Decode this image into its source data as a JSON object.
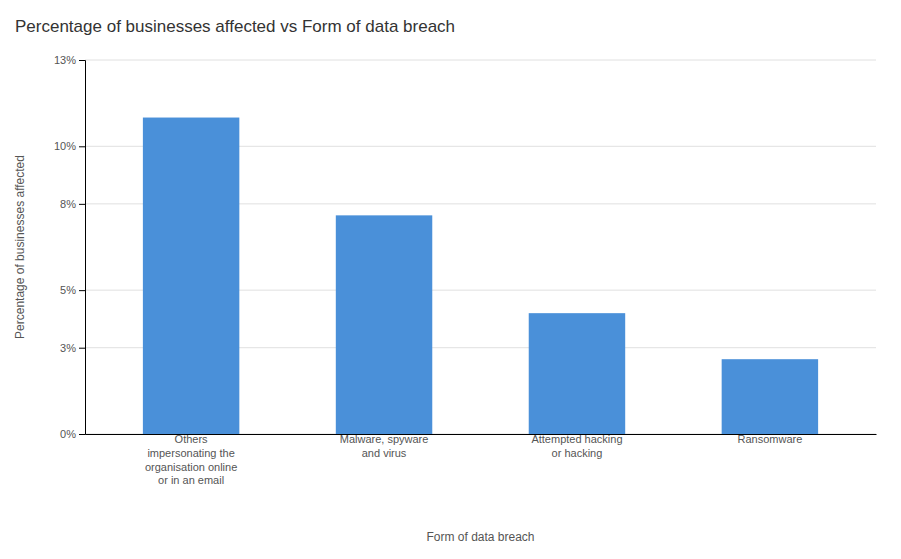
{
  "chart_data": {
    "type": "bar",
    "title": "Percentage of businesses affected vs Form of data breach",
    "xlabel": "Form of data breach",
    "ylabel": "Percentage of businesses affected",
    "categories": [
      "Others\nimpersonating the\norganisation online\nor in an email",
      "Malware, spyware\nand virus",
      "Attempted hacking\nor hacking",
      "Ransomware"
    ],
    "values": [
      11.0,
      7.6,
      4.2,
      2.6
    ],
    "color": "#4A90D9",
    "ylim": [
      0,
      13
    ],
    "yticks": [
      {
        "value": 0,
        "label": "0%"
      },
      {
        "value": 3,
        "label": "3%"
      },
      {
        "value": 5,
        "label": "5%"
      },
      {
        "value": 8,
        "label": "8%"
      },
      {
        "value": 10,
        "label": "10%"
      },
      {
        "value": 13,
        "label": "13%"
      }
    ],
    "grid": true
  }
}
